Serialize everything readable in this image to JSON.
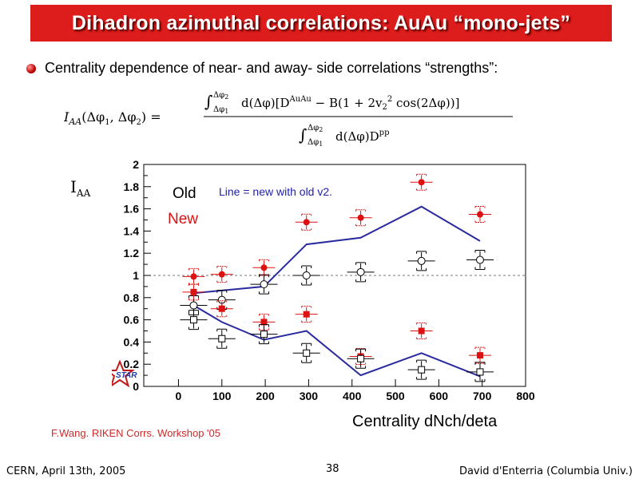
{
  "slide": {
    "title": "Dihadron azimuthal correlations: AuAu “mono-jets”",
    "bullet": "Centrality dependence of near- and away- side correlations “strengths”:",
    "iaa_label": "I",
    "iaa_sub": "AA",
    "credit": "F.Wang. RIKEN Corrs. Workshop '05",
    "footer_left": "CERN, April 13th, 2005",
    "page_number": "38",
    "footer_right": "David d'Enterria (Columbia Univ.)",
    "star_logo": "STAR"
  },
  "formula": {
    "lhs": "I",
    "lhs_sub": "AA",
    "lhs_args": "(Δφ",
    "lhs_args2": ", Δφ",
    "lhs_close": ") =",
    "numerator": "d(Δφ)[D",
    "numerator_sup": "AuAu",
    "numerator_rest": " − B(1 + 2v",
    "numerator_v": "2",
    "numerator_tail": " cos(2Δφ))]",
    "denominator": "d(Δφ)D",
    "denominator_sup": "pp",
    "int_upper": "Δφ",
    "int_lower": "Δφ",
    "idx1": "1",
    "idx2": "2",
    "integral": "∫"
  },
  "chart_data": {
    "type": "scatter",
    "xlabel": "Centrality dNch/deta",
    "ylabel": "I_AA",
    "xlim": [
      -80,
      800
    ],
    "ylim": [
      0,
      2
    ],
    "xticks": [
      "0",
      "100",
      "200",
      "300",
      "400",
      "500",
      "600",
      "700",
      "800"
    ],
    "yticks": [
      "0",
      "0.2",
      "0.4",
      "0.6",
      "0.8",
      "1",
      "1.2",
      "1.4",
      "1.6",
      "1.8",
      "2"
    ],
    "legend_old": "Old",
    "legend_new": "New",
    "line_note": "Line = new with old v2.",
    "reference_line": 1,
    "colors": {
      "new": "#dd1111",
      "old": "#000000",
      "line": "#2a2aa0",
      "note": "#2222aa"
    },
    "series": [
      {
        "name": "New",
        "marker": "filled-circle",
        "x": [
          35,
          100,
          197,
          295,
          420,
          560,
          695
        ],
        "y": [
          0.99,
          1.01,
          1.07,
          1.48,
          1.52,
          1.84,
          1.55
        ]
      },
      {
        "name": "Old",
        "marker": "open-circle",
        "x": [
          35,
          100,
          197,
          295,
          420,
          560,
          695
        ],
        "y": [
          0.73,
          0.78,
          0.92,
          1.0,
          1.03,
          1.13,
          1.14
        ]
      },
      {
        "name": "New",
        "marker": "filled-square",
        "x": [
          35,
          100,
          197,
          295,
          420,
          560,
          695
        ],
        "y": [
          0.85,
          0.7,
          0.58,
          0.65,
          0.27,
          0.5,
          0.28
        ]
      },
      {
        "name": "Old",
        "marker": "open-square",
        "x": [
          35,
          100,
          197,
          295,
          420,
          560,
          695
        ],
        "y": [
          0.6,
          0.43,
          0.47,
          0.3,
          0.25,
          0.15,
          0.13
        ]
      }
    ],
    "lines": [
      {
        "x": [
          35,
          197,
          295,
          420,
          560,
          695
        ],
        "y": [
          0.84,
          0.9,
          1.28,
          1.34,
          1.62,
          1.31
        ]
      },
      {
        "x": [
          35,
          100,
          197,
          295,
          420,
          560,
          695
        ],
        "y": [
          0.73,
          0.58,
          0.42,
          0.5,
          0.1,
          0.3,
          0.09
        ]
      }
    ]
  }
}
